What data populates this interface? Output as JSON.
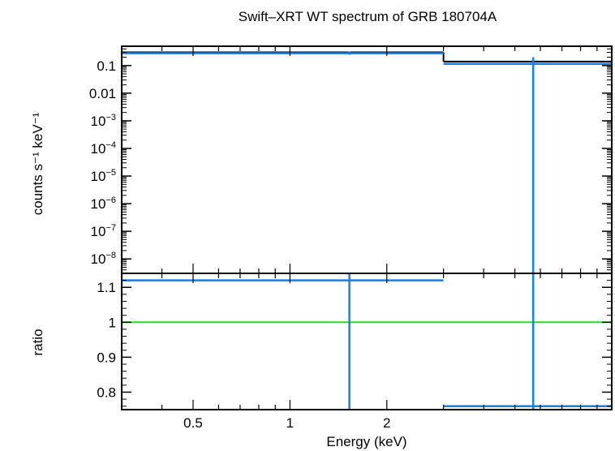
{
  "colors": {
    "data": "#1a7fe0",
    "model": "#000000",
    "unity": "#22e022",
    "frame": "#000000",
    "background": "#ffffff"
  },
  "chart_data": [
    {
      "panel": "spectrum",
      "type": "line",
      "title": "Swift–XRT WT spectrum of GRB 180704A",
      "ylabel": "counts s⁻¹ keV⁻¹",
      "xscale": "log",
      "yscale": "log",
      "xlim": [
        0.3,
        10
      ],
      "ylim": [
        3e-09,
        0.5
      ],
      "yticks": [
        {
          "v": 0.1,
          "m": "0.1",
          "e": ""
        },
        {
          "v": 0.01,
          "m": "0.01",
          "e": ""
        },
        {
          "v": 0.001,
          "m": "10",
          "e": "−3"
        },
        {
          "v": 0.0001,
          "m": "10",
          "e": "−4"
        },
        {
          "v": 1e-05,
          "m": "10",
          "e": "−5"
        },
        {
          "v": 1e-06,
          "m": "10",
          "e": "−6"
        },
        {
          "v": 1e-07,
          "m": "10",
          "e": "−7"
        },
        {
          "v": 1e-08,
          "m": "10",
          "e": "−8"
        }
      ],
      "series": [
        {
          "kind": "data",
          "points": [
            {
              "x0": 0.3,
              "x1": 3.0,
              "xc": 1.53,
              "y": 0.28,
              "ylo": 0.245,
              "yhi": 0.32
            },
            {
              "x0": 3.0,
              "x1": 10.0,
              "xc": 5.7,
              "y": 0.115,
              "ylo": 3e-09,
              "yhi": 0.2
            }
          ]
        },
        {
          "kind": "model",
          "steps": [
            {
              "x0": 0.3,
              "x1": 3.0,
              "y": 0.3
            },
            {
              "x0": 3.0,
              "x1": 10.0,
              "y": 0.14
            }
          ]
        }
      ]
    },
    {
      "panel": "ratio",
      "type": "line",
      "ylabel": "ratio",
      "xlabel": "Energy (keV)",
      "xscale": "log",
      "xlim": [
        0.3,
        10
      ],
      "ylim": [
        0.75,
        1.14
      ],
      "xticks": [
        {
          "v": 0.5,
          "label": "0.5"
        },
        {
          "v": 1,
          "label": "1"
        },
        {
          "v": 2,
          "label": "2"
        }
      ],
      "yticks": [
        {
          "v": 1.1,
          "label": "1.1"
        },
        {
          "v": 1.0,
          "label": "1"
        },
        {
          "v": 0.9,
          "label": "0.9"
        },
        {
          "v": 0.8,
          "label": "0.8"
        }
      ],
      "reference": 1.0,
      "series": [
        {
          "kind": "data",
          "points": [
            {
              "x0": 0.3,
              "x1": 3.0,
              "xc": 1.53,
              "y": 1.12,
              "ylo": 0.75,
              "yhi": 1.14
            },
            {
              "x0": 3.0,
              "x1": 10.0,
              "xc": 5.7,
              "y": 0.76,
              "ylo": 0.75,
              "yhi": 1.14
            }
          ]
        }
      ]
    }
  ]
}
